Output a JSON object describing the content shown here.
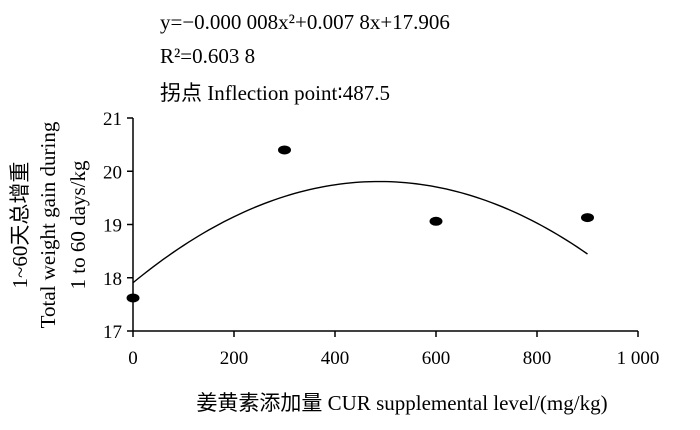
{
  "chart_data": {
    "type": "scatter",
    "annotations": {
      "equation": "y=−0.000 008x²+0.007 8x+17.906",
      "r2": "R²=0.603 8",
      "inflection": "拐点  Inflection point∶487.5"
    },
    "xlabel": "姜黄素添加量  CUR supplemental level/(mg/kg)",
    "ylabel_lines": [
      "1~60天总增重",
      "Total weight gain during",
      "1 to 60 days/kg"
    ],
    "xlim": [
      0,
      1000
    ],
    "ylim": [
      17,
      21
    ],
    "x_ticks": [
      0,
      200,
      400,
      600,
      800,
      1000
    ],
    "x_tick_labels": [
      "0",
      "200",
      "400",
      "600",
      "800",
      "1 000"
    ],
    "y_ticks": [
      17,
      18,
      19,
      20,
      21
    ],
    "y_tick_labels": [
      "17",
      "18",
      "19",
      "20",
      "21"
    ],
    "grid": false,
    "series": [
      {
        "type": "scatter",
        "x": [
          0,
          300,
          600,
          900
        ],
        "y": [
          17.62,
          20.4,
          19.06,
          19.13
        ]
      },
      {
        "type": "fit-curve",
        "coefficients": [
          -8e-06,
          0.0078,
          17.906
        ],
        "x_range": [
          0,
          900
        ]
      }
    ]
  }
}
